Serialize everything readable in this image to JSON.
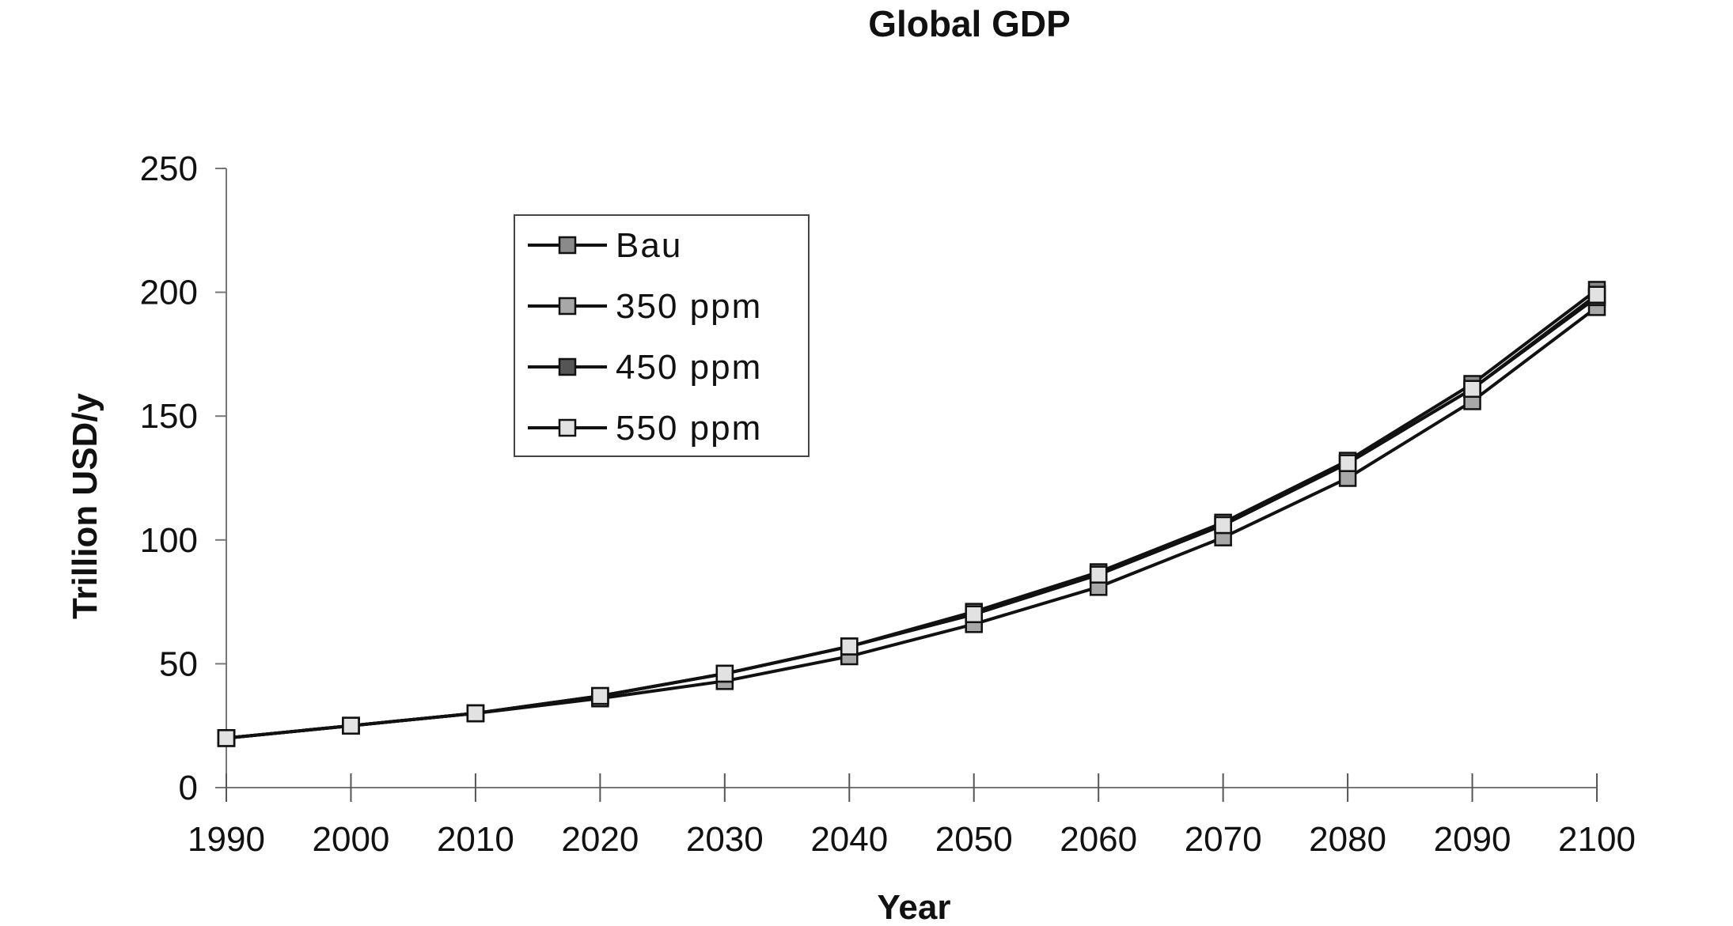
{
  "chart_data": {
    "type": "line",
    "title": "Global GDP",
    "xlabel": "Year",
    "ylabel": "Trillion USD/y",
    "x": [
      1990,
      2000,
      2010,
      2020,
      2030,
      2040,
      2050,
      2060,
      2070,
      2080,
      2090,
      2100
    ],
    "ylim": [
      0,
      250
    ],
    "yticks": [
      0,
      50,
      100,
      150,
      200,
      250
    ],
    "grid": false,
    "legend_position": "upper-left",
    "series": [
      {
        "name": "Bau",
        "marker_fill": "#8a8a8a",
        "values": [
          20,
          25,
          30,
          37,
          46,
          57,
          71,
          87,
          107,
          132,
          163,
          201
        ]
      },
      {
        "name": "350 ppm",
        "marker_fill": "#a8a8a8",
        "values": [
          20,
          25,
          30,
          36,
          43,
          53,
          66,
          81,
          101,
          125,
          156,
          194
        ]
      },
      {
        "name": "450 ppm",
        "marker_fill": "#555555",
        "values": [
          20,
          25,
          30,
          37,
          46,
          57,
          70,
          86,
          106,
          131,
          161,
          198
        ]
      },
      {
        "name": "550 ppm",
        "marker_fill": "#e2e2e2",
        "values": [
          20,
          25,
          30,
          37,
          46,
          57,
          70,
          86,
          106,
          131,
          161,
          199
        ]
      }
    ]
  }
}
